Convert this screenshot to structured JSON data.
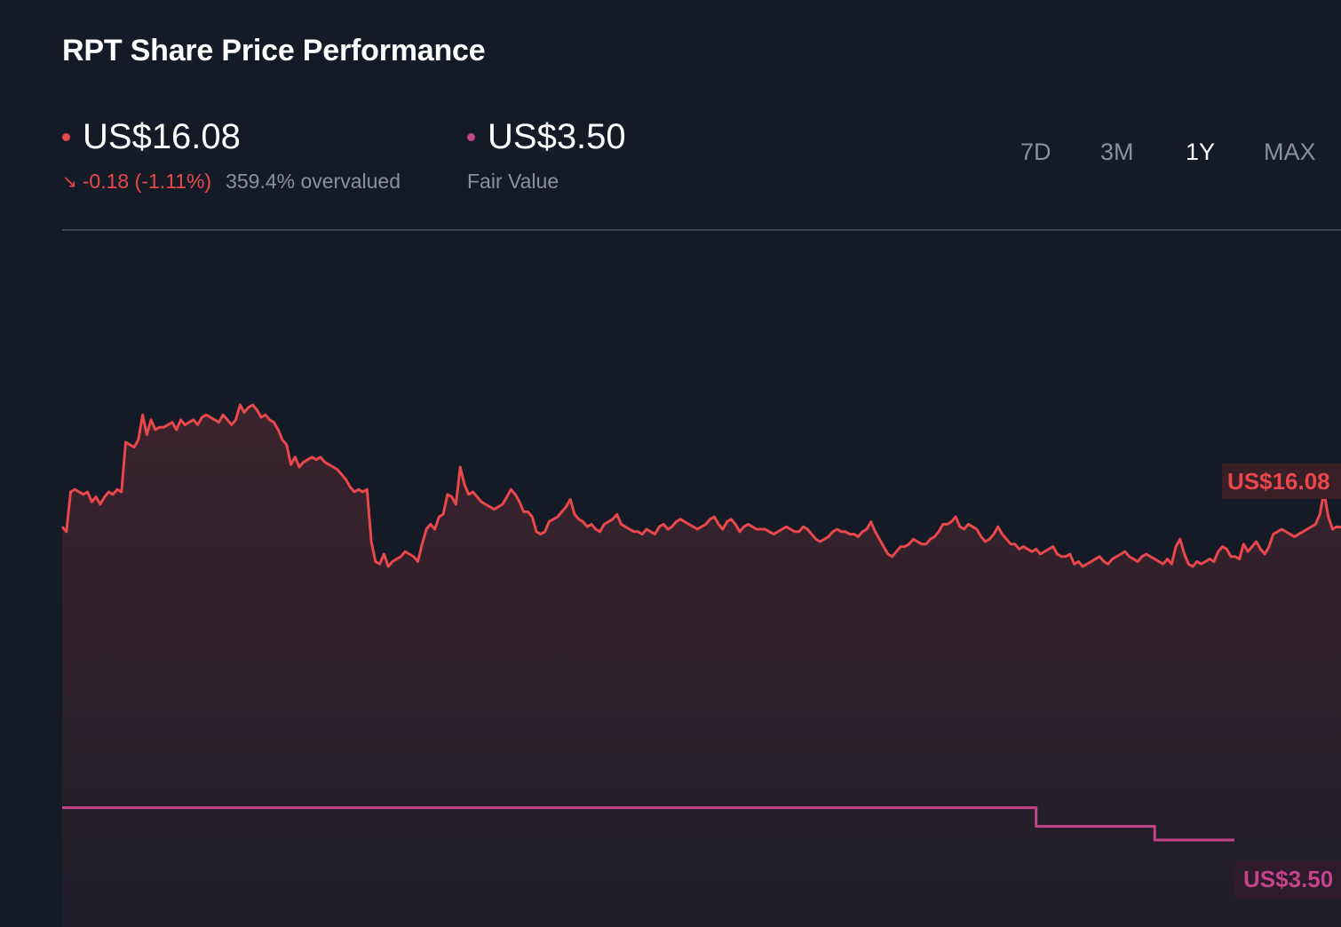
{
  "header": {
    "title": "RPT Share Price Performance"
  },
  "price": {
    "value": "US$16.08",
    "change": "-0.18 (-1.11%)",
    "valuation": "359.4% overvalued",
    "color": "#e8484b"
  },
  "fair_value": {
    "value": "US$3.50",
    "label": "Fair Value",
    "color": "#c2448a"
  },
  "range_tabs": [
    {
      "label": "7D",
      "active": false
    },
    {
      "label": "3M",
      "active": false
    },
    {
      "label": "1Y",
      "active": true
    },
    {
      "label": "MAX",
      "active": false
    }
  ],
  "chart_data": {
    "type": "line",
    "title": "RPT Share Price Performance",
    "series": [
      {
        "name": "Share Price",
        "color": "#e8484b",
        "values": [
          16.1,
          15.9,
          17.5,
          17.6,
          17.5,
          17.4,
          17.5,
          17.1,
          17.3,
          17.0,
          17.3,
          17.5,
          17.4,
          17.6,
          17.5,
          19.5,
          19.4,
          19.3,
          19.6,
          20.6,
          19.8,
          20.4,
          20.0,
          20.1,
          20.1,
          20.2,
          20.3,
          20.0,
          20.4,
          20.2,
          20.3,
          20.4,
          20.2,
          20.5,
          20.6,
          20.5,
          20.4,
          20.3,
          20.6,
          20.4,
          20.2,
          20.4,
          21.0,
          20.7,
          20.9,
          21.0,
          20.8,
          20.5,
          20.6,
          20.4,
          20.3,
          20.0,
          19.6,
          19.4,
          18.6,
          18.9,
          18.5,
          18.7,
          18.8,
          18.9,
          18.8,
          18.9,
          18.7,
          18.6,
          18.5,
          18.4,
          18.2,
          18.0,
          17.7,
          17.5,
          17.6,
          17.5,
          17.6,
          15.5,
          14.7,
          14.6,
          15.0,
          14.5,
          14.7,
          14.8,
          14.9,
          15.1,
          15.0,
          14.9,
          14.7,
          15.4,
          16.0,
          16.2,
          16.0,
          16.5,
          16.6,
          17.4,
          17.3,
          17.0,
          18.5,
          17.8,
          17.4,
          17.5,
          17.3,
          17.1,
          17.0,
          16.9,
          16.8,
          16.9,
          17.0,
          17.3,
          17.6,
          17.4,
          17.1,
          16.7,
          16.7,
          16.5,
          15.9,
          15.8,
          15.9,
          16.3,
          16.4,
          16.5,
          16.7,
          16.9,
          17.2,
          16.6,
          16.4,
          16.3,
          16.1,
          16.2,
          16.0,
          15.9,
          16.2,
          16.3,
          16.4,
          16.6,
          16.2,
          16.1,
          16.0,
          15.9,
          15.9,
          15.8,
          16.0,
          15.9,
          15.8,
          16.1,
          16.2,
          16.0,
          16.1,
          16.3,
          16.4,
          16.3,
          16.2,
          16.1,
          16.0,
          16.1,
          16.2,
          16.4,
          16.5,
          16.2,
          16.0,
          16.3,
          16.4,
          16.2,
          15.9,
          16.1,
          16.2,
          16.1,
          16.0,
          16.0,
          16.0,
          15.9,
          15.8,
          15.9,
          16.0,
          16.1,
          16.0,
          15.9,
          15.9,
          16.1,
          16.0,
          15.8,
          15.6,
          15.5,
          15.6,
          15.7,
          15.9,
          16.0,
          15.9,
          15.9,
          15.8,
          15.8,
          15.7,
          15.9,
          16.0,
          16.3,
          15.9,
          15.6,
          15.3,
          15.0,
          14.9,
          15.1,
          15.3,
          15.3,
          15.4,
          15.6,
          15.5,
          15.4,
          15.4,
          15.6,
          15.7,
          15.9,
          16.2,
          16.2,
          16.3,
          16.5,
          16.1,
          16.0,
          16.2,
          16.1,
          16.0,
          15.7,
          15.5,
          15.6,
          15.8,
          16.1,
          15.8,
          15.6,
          15.4,
          15.4,
          15.2,
          15.3,
          15.2,
          15.1,
          15.2,
          15.0,
          15.1,
          15.2,
          15.3,
          15.0,
          14.9,
          14.9,
          15.0,
          14.6,
          14.7,
          14.5,
          14.6,
          14.7,
          14.8,
          14.9,
          14.7,
          14.6,
          14.8,
          14.9,
          15.0,
          15.1,
          14.9,
          14.8,
          14.7,
          14.9,
          15.0,
          14.9,
          14.8,
          14.7,
          14.6,
          14.8,
          14.6,
          15.3,
          15.6,
          15.0,
          14.6,
          14.5,
          14.7,
          14.6,
          14.7,
          14.8,
          14.7,
          15.1,
          15.3,
          15.2,
          14.9,
          14.9,
          14.8,
          15.4,
          15.1,
          15.3,
          15.5,
          15.2,
          15.0,
          15.3,
          15.8,
          15.9,
          16.0,
          15.9,
          15.8,
          15.7,
          15.8,
          15.9,
          16.0,
          16.1,
          16.2,
          16.6,
          17.5,
          16.5,
          16.0,
          16.1,
          16.08
        ]
      },
      {
        "name": "Fair Value",
        "color": "#c2448a",
        "values_note_steps": true,
        "steps": [
          {
            "from_index": 0,
            "to_index": 230,
            "value": 4.8
          },
          {
            "from_index": 230,
            "to_index": 258,
            "value": 4.05
          },
          {
            "from_index": 258,
            "to_index": 305,
            "value": 3.5
          }
        ]
      }
    ],
    "ylim": [
      0,
      28
    ],
    "grid": false,
    "annotations": [
      {
        "series": "Share Price",
        "text": "US$16.08"
      },
      {
        "series": "Fair Value",
        "text": "US$3.50"
      }
    ]
  }
}
